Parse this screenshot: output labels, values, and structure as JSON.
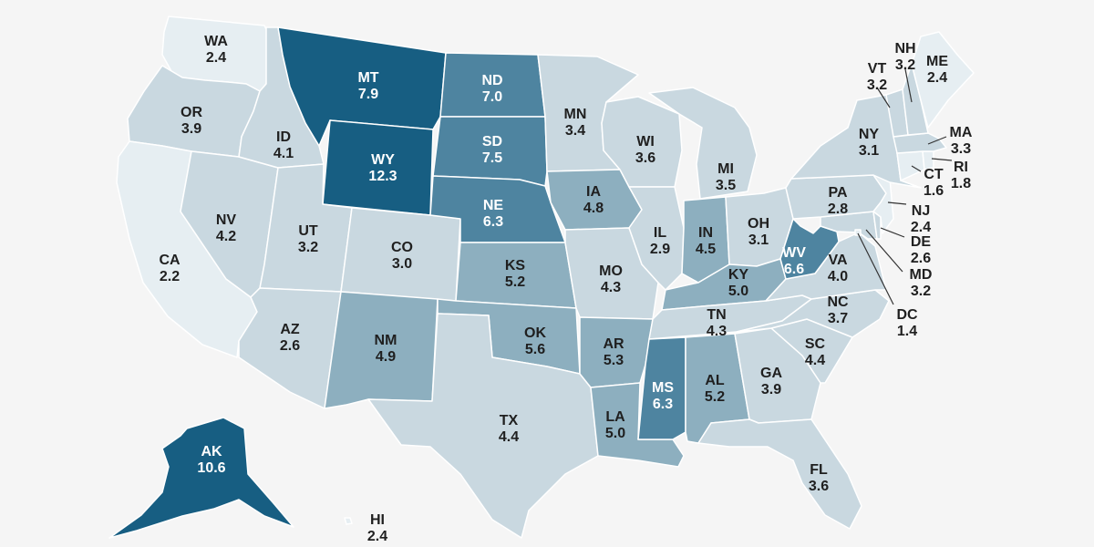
{
  "colors": {
    "background": "#f5f5f5",
    "scale": [
      "#e6eef2",
      "#c9d8e0",
      "#8dafbf",
      "#4e84a0",
      "#175e82"
    ],
    "label_dark": "#1f1f1f",
    "label_light": "#ffffff"
  },
  "scale_breaks": [
    2.5,
    4.45,
    6.0,
    7.6
  ],
  "states": [
    {
      "abbr": "WA",
      "value": "2.4"
    },
    {
      "abbr": "OR",
      "value": "3.9"
    },
    {
      "abbr": "CA",
      "value": "2.2"
    },
    {
      "abbr": "NV",
      "value": "4.2"
    },
    {
      "abbr": "ID",
      "value": "4.1"
    },
    {
      "abbr": "MT",
      "value": "7.9"
    },
    {
      "abbr": "WY",
      "value": "12.3"
    },
    {
      "abbr": "UT",
      "value": "3.2"
    },
    {
      "abbr": "AZ",
      "value": "2.6"
    },
    {
      "abbr": "CO",
      "value": "3.0"
    },
    {
      "abbr": "NM",
      "value": "4.9"
    },
    {
      "abbr": "ND",
      "value": "7.0"
    },
    {
      "abbr": "SD",
      "value": "7.5"
    },
    {
      "abbr": "NE",
      "value": "6.3"
    },
    {
      "abbr": "KS",
      "value": "5.2"
    },
    {
      "abbr": "OK",
      "value": "5.6"
    },
    {
      "abbr": "TX",
      "value": "4.4"
    },
    {
      "abbr": "MN",
      "value": "3.4"
    },
    {
      "abbr": "IA",
      "value": "4.8"
    },
    {
      "abbr": "MO",
      "value": "4.3"
    },
    {
      "abbr": "AR",
      "value": "5.3"
    },
    {
      "abbr": "LA",
      "value": "5.0"
    },
    {
      "abbr": "WI",
      "value": "3.6"
    },
    {
      "abbr": "IL",
      "value": "2.9"
    },
    {
      "abbr": "MI",
      "value": "3.5"
    },
    {
      "abbr": "IN",
      "value": "4.5"
    },
    {
      "abbr": "OH",
      "value": "3.1"
    },
    {
      "abbr": "KY",
      "value": "5.0"
    },
    {
      "abbr": "TN",
      "value": "4.3"
    },
    {
      "abbr": "MS",
      "value": "6.3"
    },
    {
      "abbr": "AL",
      "value": "5.2"
    },
    {
      "abbr": "GA",
      "value": "3.9"
    },
    {
      "abbr": "FL",
      "value": "3.6"
    },
    {
      "abbr": "SC",
      "value": "4.4"
    },
    {
      "abbr": "NC",
      "value": "3.7"
    },
    {
      "abbr": "VA",
      "value": "4.0"
    },
    {
      "abbr": "WV",
      "value": "6.6"
    },
    {
      "abbr": "PA",
      "value": "2.8"
    },
    {
      "abbr": "NY",
      "value": "3.1"
    },
    {
      "abbr": "VT",
      "value": "3.2"
    },
    {
      "abbr": "NH",
      "value": "3.2"
    },
    {
      "abbr": "ME",
      "value": "2.4"
    },
    {
      "abbr": "MA",
      "value": "3.3"
    },
    {
      "abbr": "RI",
      "value": "1.8"
    },
    {
      "abbr": "CT",
      "value": "1.6"
    },
    {
      "abbr": "NJ",
      "value": "2.4"
    },
    {
      "abbr": "DE",
      "value": "2.6"
    },
    {
      "abbr": "MD",
      "value": "3.2"
    },
    {
      "abbr": "DC",
      "value": "1.4"
    },
    {
      "abbr": "AK",
      "value": "10.6"
    },
    {
      "abbr": "HI",
      "value": "2.4"
    }
  ]
}
